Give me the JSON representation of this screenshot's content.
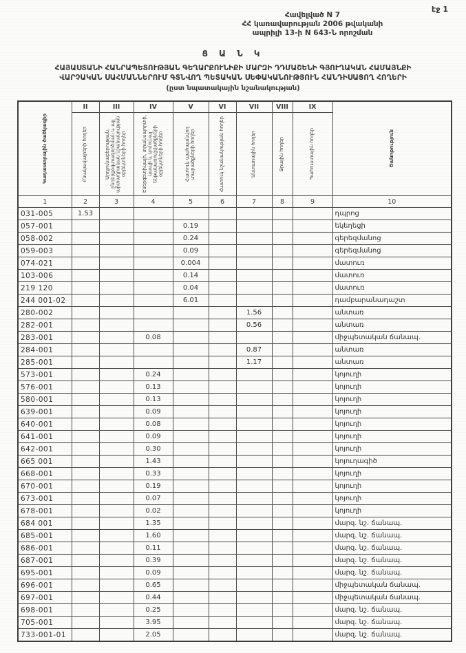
{
  "page": {
    "number_label": "էջ 1"
  },
  "appendix": {
    "line1": "Հավելված N 7",
    "line2": "ՀՀ կառավարության 2006 թվականի",
    "line3": "ապրիլի 13-ի N 643-Ն որոշման"
  },
  "title": "Ց Ա Ն Կ",
  "subtitle": {
    "line1": "ՀԱՅԱՍՏԱՆԻ ՀԱՆՐԱՊԵՏՈՒԹՅԱՆ ԳԵՂԱՐՔՈՒՆԻՔԻ ՄԱՐԶԻ ԴԴՄԱՇԵՆԻ ԳՅՈՒՂԱԿԱՆ ՀԱՄԱՅՆՔԻ",
    "line2": "ՎԱՐՉԱԿԱՆ ՍԱՀՄԱՆՆԵՐՈՒՄ ԳՏՆՎՈՂ ՊԵՏԱԿԱՆ ՍԵՓԱԿԱՆՈՒԹՅՈՒՆ ՀԱՆԴԻՍԱՑՈՂ ՀՈՂԵՐԻ",
    "line3": "(ըստ նպատակային նշանակության)"
  },
  "table": {
    "corner_label": "Կադաստրային ծածկագիր",
    "note_label": "Ծանոթություն",
    "roman": [
      "II",
      "III",
      "IV",
      "V",
      "VI",
      "VII",
      "VIII",
      "IX"
    ],
    "category_labels": [
      "Բնակավայրերի հողեր",
      "Արդյունաբերության, ընդերքօգտագործման և այլ արտադրական նշանակության օբյեկտների հողեր",
      "Էներգետիկայի, տրանսպորտի, կապի և կոմունալ ենթակառուցվածքների օբյեկտների հողեր",
      "Հատուկ պահպանվող տարածքների հողեր",
      "Հատուկ նշանակության հողեր",
      "Անտառային հողեր",
      "Ջրային հողեր",
      "Պահուստային հողեր"
    ],
    "numbers": [
      "1",
      "2",
      "3",
      "4",
      "5",
      "6",
      "7",
      "8",
      "9",
      "10"
    ],
    "rows": [
      [
        "031-005",
        "1.53",
        "",
        "",
        "",
        "",
        "",
        "",
        "",
        "դպրոց"
      ],
      [
        "057-001",
        "",
        "",
        "",
        "0.19",
        "",
        "",
        "",
        "",
        "եկեղեցի"
      ],
      [
        "058-002",
        "",
        "",
        "",
        "0.24",
        "",
        "",
        "",
        "",
        "գերեզմանոց"
      ],
      [
        "059-003",
        "",
        "",
        "",
        "0.09",
        "",
        "",
        "",
        "",
        "գերեզմանոց"
      ],
      [
        "074-021",
        "",
        "",
        "",
        "0.004",
        "",
        "",
        "",
        "",
        "մատուռ"
      ],
      [
        "103-006",
        "",
        "",
        "",
        "0.14",
        "",
        "",
        "",
        "",
        "մատուռ"
      ],
      [
        "219 120",
        "",
        "",
        "",
        "0.04",
        "",
        "",
        "",
        "",
        "մատուռ"
      ],
      [
        "244 001-02",
        "",
        "",
        "",
        "6.01",
        "",
        "",
        "",
        "",
        "դամբարանադաշտ"
      ],
      [
        "280-002",
        "",
        "",
        "",
        "",
        "",
        "1.56",
        "",
        "",
        "անտառ"
      ],
      [
        "282-001",
        "",
        "",
        "",
        "",
        "",
        "0.56",
        "",
        "",
        "անտառ"
      ],
      [
        "283-001",
        "",
        "",
        "0.08",
        "",
        "",
        "",
        "",
        "",
        "միջպետական ճանապ."
      ],
      [
        "284-001",
        "",
        "",
        "",
        "",
        "",
        "0.87",
        "",
        "",
        "անտառ"
      ],
      [
        "285-001",
        "",
        "",
        "",
        "",
        "",
        "1.17",
        "",
        "",
        "անտառ"
      ],
      [
        "573-001",
        "",
        "",
        "0.24",
        "",
        "",
        "",
        "",
        "",
        "կոյուղի"
      ],
      [
        "576-001",
        "",
        "",
        "0.13",
        "",
        "",
        "",
        "",
        "",
        "կոյուղի"
      ],
      [
        "580-001",
        "",
        "",
        "0.13",
        "",
        "",
        "",
        "",
        "",
        "կոյուղի"
      ],
      [
        "639-001",
        "",
        "",
        "0.09",
        "",
        "",
        "",
        "",
        "",
        "կոյուղի"
      ],
      [
        "640-001",
        "",
        "",
        "0.08",
        "",
        "",
        "",
        "",
        "",
        "կոյուղի"
      ],
      [
        "641-001",
        "",
        "",
        "0.09",
        "",
        "",
        "",
        "",
        "",
        "կոյուղի"
      ],
      [
        "642-001",
        "",
        "",
        "0.30",
        "",
        "",
        "",
        "",
        "",
        "կոյուղի"
      ],
      [
        "665 001",
        "",
        "",
        "1.43",
        "",
        "",
        "",
        "",
        "",
        "կոյուղագիծ"
      ],
      [
        "668-001",
        "",
        "",
        "0.33",
        "",
        "",
        "",
        "",
        "",
        "կոյուղի"
      ],
      [
        "670-001",
        "",
        "",
        "0.19",
        "",
        "",
        "",
        "",
        "",
        "կոյուղի"
      ],
      [
        "673-001",
        "",
        "",
        "0.07",
        "",
        "",
        "",
        "",
        "",
        "կոյուղի"
      ],
      [
        "678-001",
        "",
        "",
        "0.02",
        "",
        "",
        "",
        "",
        "",
        "կոյուղի"
      ],
      [
        "684 001",
        "",
        "",
        "1.35",
        "",
        "",
        "",
        "",
        "",
        "մարզ. նշ. ճանապ."
      ],
      [
        "685-001",
        "",
        "",
        "1.60",
        "",
        "",
        "",
        "",
        "",
        "մարզ. նշ. ճանապ."
      ],
      [
        "686-001",
        "",
        "",
        "0.11",
        "",
        "",
        "",
        "",
        "",
        "մարզ. նշ. ճանապ."
      ],
      [
        "687-001",
        "",
        "",
        "0.39",
        "",
        "",
        "",
        "",
        "",
        "մարզ. նշ. ճանապ."
      ],
      [
        "695-001",
        "",
        "",
        "0.09",
        "",
        "",
        "",
        "",
        "",
        "մարզ. նշ. ճանապ."
      ],
      [
        "696-001",
        "",
        "",
        "0.65",
        "",
        "",
        "",
        "",
        "",
        "միջպետական ճանապ."
      ],
      [
        "697-001",
        "",
        "",
        "0.44",
        "",
        "",
        "",
        "",
        "",
        "միջպետական ճանապ."
      ],
      [
        "698-001",
        "",
        "",
        "0.25",
        "",
        "",
        "",
        "",
        "",
        "մարզ. նշ. ճանապ."
      ],
      [
        "705-001",
        "",
        "",
        "3.95",
        "",
        "",
        "",
        "",
        "",
        "մարզ. նշ. ճանապ."
      ],
      [
        "733-001-01",
        "",
        "",
        "2.05",
        "",
        "",
        "",
        "",
        "",
        "մարզ. նշ. ճանապ."
      ]
    ]
  }
}
